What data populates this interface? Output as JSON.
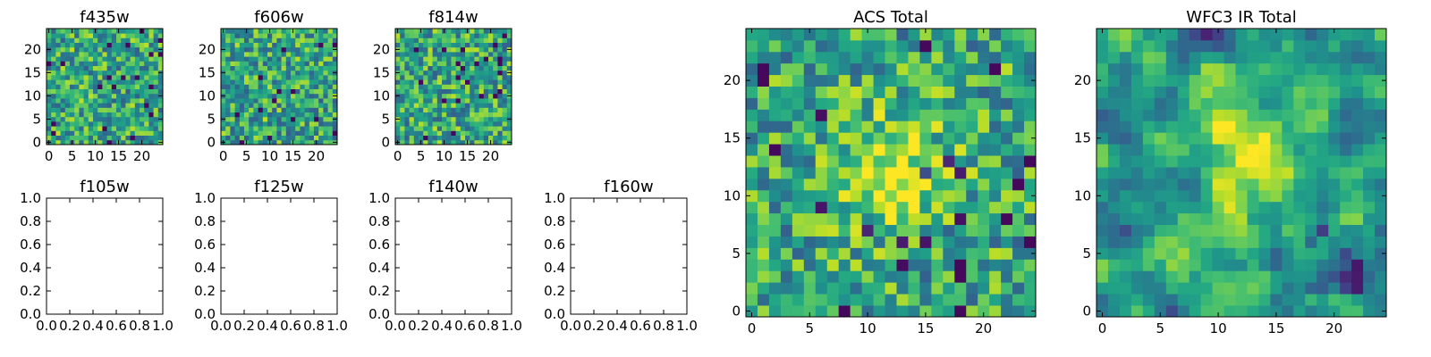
{
  "chart_data": [
    {
      "type": "heatmap",
      "title": "f435w",
      "size": 25,
      "colormap": "viridis",
      "xticks": [
        0,
        5,
        10,
        15,
        20
      ],
      "yticks": [
        0,
        5,
        10,
        15,
        20
      ],
      "pattern": "noise",
      "seed": 101,
      "blob": null
    },
    {
      "type": "heatmap",
      "title": "f606w",
      "size": 25,
      "colormap": "viridis",
      "xticks": [
        0,
        5,
        10,
        15,
        20
      ],
      "yticks": [
        0,
        5,
        10,
        15,
        20
      ],
      "pattern": "noise",
      "seed": 202,
      "blob": null
    },
    {
      "type": "heatmap",
      "title": "f814w",
      "size": 25,
      "colormap": "viridis",
      "xticks": [
        0,
        5,
        10,
        15,
        20
      ],
      "yticks": [
        0,
        5,
        10,
        15,
        20
      ],
      "pattern": "noise",
      "seed": 303,
      "blob": null
    },
    {
      "type": "empty",
      "title": "f105w",
      "xticks": [
        "0.0",
        "0.2",
        "0.4",
        "0.6",
        "0.8",
        "1.0"
      ],
      "yticks": [
        "0.0",
        "0.2",
        "0.4",
        "0.6",
        "0.8",
        "1.0"
      ]
    },
    {
      "type": "empty",
      "title": "f125w",
      "xticks": [
        "0.0",
        "0.2",
        "0.4",
        "0.6",
        "0.8",
        "1.0"
      ],
      "yticks": [
        "0.0",
        "0.2",
        "0.4",
        "0.6",
        "0.8",
        "1.0"
      ]
    },
    {
      "type": "empty",
      "title": "f140w",
      "xticks": [
        "0.0",
        "0.2",
        "0.4",
        "0.6",
        "0.8",
        "1.0"
      ],
      "yticks": [
        "0.0",
        "0.2",
        "0.4",
        "0.6",
        "0.8",
        "1.0"
      ]
    },
    {
      "type": "empty",
      "title": "f160w",
      "xticks": [
        "0.0",
        "0.2",
        "0.4",
        "0.6",
        "0.8",
        "1.0"
      ],
      "yticks": [
        "0.0",
        "0.2",
        "0.4",
        "0.6",
        "0.8",
        "1.0"
      ]
    },
    {
      "type": "heatmap",
      "title": "ACS Total",
      "size": 25,
      "colormap": "viridis",
      "xticks": [
        0,
        5,
        10,
        15,
        20
      ],
      "yticks": [
        0,
        5,
        10,
        15,
        20
      ],
      "pattern": "noise+blob",
      "seed": 404,
      "blob": {
        "cx": 12,
        "cy": 12,
        "sigma": 3.2,
        "amp": 0.35
      }
    },
    {
      "type": "heatmap",
      "title": "WFC3 IR Total",
      "size": 25,
      "colormap": "viridis",
      "xticks": [
        0,
        5,
        10,
        15,
        20
      ],
      "yticks": [
        0,
        5,
        10,
        15,
        20
      ],
      "pattern": "smooth+blob",
      "seed": 505,
      "blob": {
        "cx": 13,
        "cy": 13,
        "sigma": 3.6,
        "amp": 0.45
      }
    }
  ]
}
